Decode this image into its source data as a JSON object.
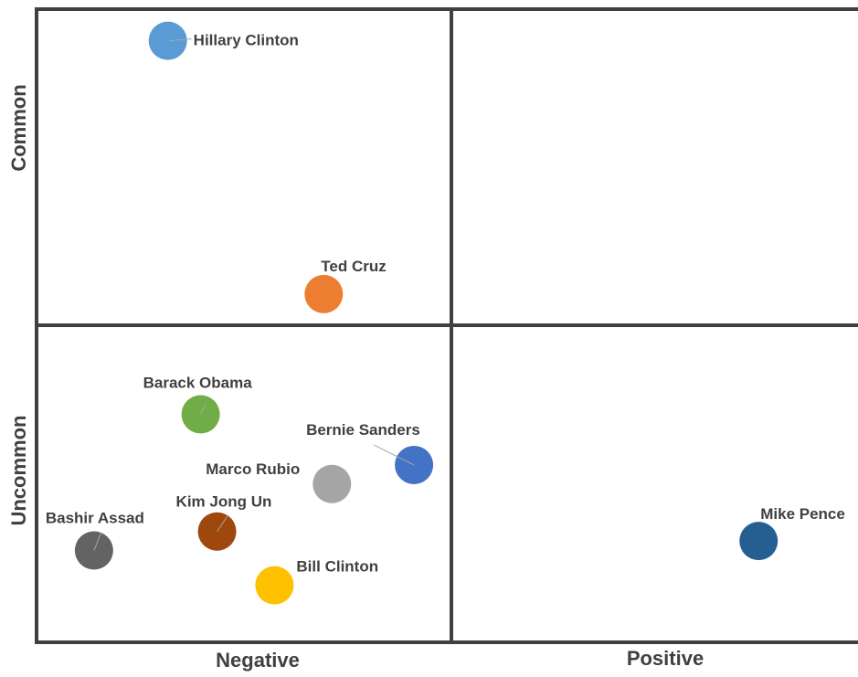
{
  "chart_data": {
    "type": "scatter",
    "title": "",
    "x_axis": {
      "categories": [
        "Negative",
        "Positive"
      ]
    },
    "y_axis": {
      "categories": [
        "Uncommon",
        "Common"
      ]
    },
    "xlim": [
      0,
      10
    ],
    "ylim": [
      0,
      10
    ],
    "grid": "quadrant dividers at midpoints",
    "legend": "none",
    "series": [
      {
        "label": "Hillary Clinton",
        "x": 1.6,
        "y": 9.5,
        "color": "#5B9BD5"
      },
      {
        "label": "Ted Cruz",
        "x": 3.5,
        "y": 5.5,
        "color": "#ED7D31"
      },
      {
        "label": "Barack Obama",
        "x": 2.0,
        "y": 3.6,
        "color": "#70AD47"
      },
      {
        "label": "Bernie Sanders",
        "x": 4.6,
        "y": 2.8,
        "color": "#4472C4"
      },
      {
        "label": "Marco Rubio",
        "x": 3.6,
        "y": 2.5,
        "color": "#A5A5A5"
      },
      {
        "label": "Kim Jong Un",
        "x": 2.2,
        "y": 1.75,
        "color": "#9E480E"
      },
      {
        "label": "Bashir Assad",
        "x": 0.7,
        "y": 1.45,
        "color": "#636363"
      },
      {
        "label": "Bill Clinton",
        "x": 2.9,
        "y": 0.9,
        "color": "#FFC000"
      },
      {
        "label": "Mike Pence",
        "x": 8.8,
        "y": 1.6,
        "color": "#255E91"
      }
    ]
  }
}
